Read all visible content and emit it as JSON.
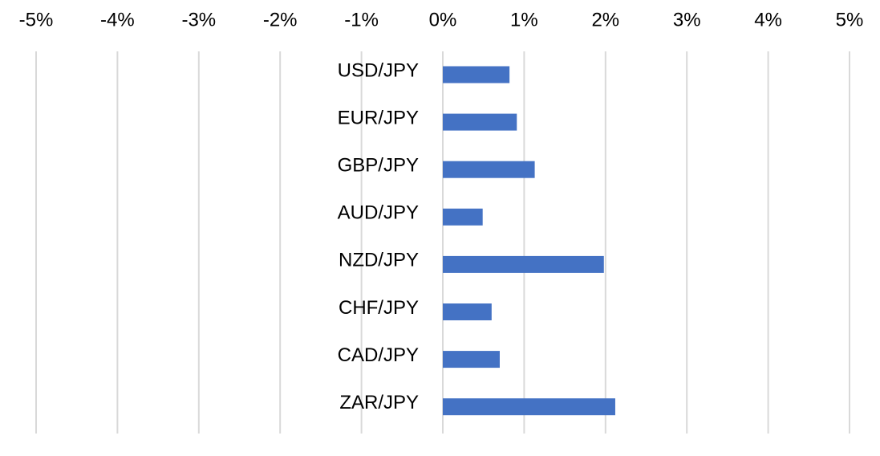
{
  "chart_data": {
    "type": "bar",
    "orientation": "horizontal",
    "categories": [
      "USD/JPY",
      "EUR/JPY",
      "GBP/JPY",
      "AUD/JPY",
      "NZD/JPY",
      "CHF/JPY",
      "CAD/JPY",
      "ZAR/JPY"
    ],
    "values": [
      0.82,
      0.91,
      1.13,
      0.49,
      1.98,
      0.6,
      0.7,
      2.12
    ],
    "xlim": [
      -5,
      5
    ],
    "x_ticks": [
      -5,
      -4,
      -3,
      -2,
      -1,
      0,
      1,
      2,
      3,
      4,
      5
    ],
    "x_tick_labels": [
      "-5%",
      "-4%",
      "-3%",
      "-2%",
      "-1%",
      "0%",
      "1%",
      "2%",
      "3%",
      "4%",
      "5%"
    ],
    "x_axis_position": "top",
    "grid": true,
    "legend": "none",
    "title": "",
    "xlabel": "",
    "ylabel": "",
    "colors": {
      "bar": "#4472c4",
      "grid": "#d9d9d9"
    }
  }
}
